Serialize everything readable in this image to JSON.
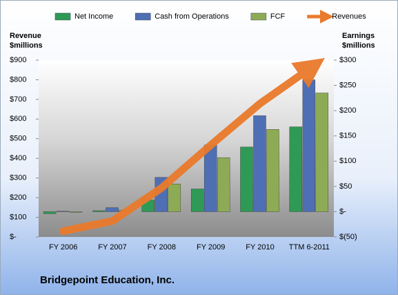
{
  "chart_data": {
    "type": "bar",
    "title": "Bridgepoint Education, Inc.",
    "y_label": [
      "Revenue",
      "$millions"
    ],
    "y2_label": [
      "Earnings",
      "$millions"
    ],
    "categories": [
      "FY 2006",
      "FY 2007",
      "FY 2008",
      "FY 2009",
      "FY 2010",
      "TTM 6-2011"
    ],
    "series": [
      {
        "name": "Net Income",
        "color": "#2f9a55",
        "axis": "y2",
        "values": [
          -4,
          2,
          23,
          45,
          128,
          168
        ]
      },
      {
        "name": "Cash from Operations",
        "color": "#4f6fb4",
        "axis": "y2",
        "values": [
          1,
          8,
          68,
          132,
          190,
          261
        ]
      },
      {
        "name": "FCF",
        "color": "#8dab55",
        "axis": "y2",
        "values": [
          -1,
          3,
          55,
          107,
          163,
          235
        ]
      },
      {
        "name": "Revenues",
        "color": "#ea7a2c",
        "axis": "y",
        "type": "line",
        "values": [
          30,
          81,
          250,
          468,
          679,
          855
        ]
      }
    ],
    "ylim": [
      0,
      900
    ],
    "yticks": [
      {
        "value": 0,
        "label": "$-"
      },
      {
        "value": 100,
        "label": "$100"
      },
      {
        "value": 200,
        "label": "$200"
      },
      {
        "value": 300,
        "label": "$300"
      },
      {
        "value": 400,
        "label": "$400"
      },
      {
        "value": 500,
        "label": "$500"
      },
      {
        "value": 600,
        "label": "$600"
      },
      {
        "value": 700,
        "label": "$700"
      },
      {
        "value": 800,
        "label": "$800"
      },
      {
        "value": 900,
        "label": "$900"
      }
    ],
    "y2lim": [
      -50,
      300
    ],
    "y2ticks": [
      {
        "value": -50,
        "label": "$(50)"
      },
      {
        "value": 0,
        "label": "$-"
      },
      {
        "value": 50,
        "label": "$50"
      },
      {
        "value": 100,
        "label": "$100"
      },
      {
        "value": 150,
        "label": "$150"
      },
      {
        "value": 200,
        "label": "$200"
      },
      {
        "value": 250,
        "label": "$250"
      },
      {
        "value": 300,
        "label": "$300"
      }
    ]
  }
}
